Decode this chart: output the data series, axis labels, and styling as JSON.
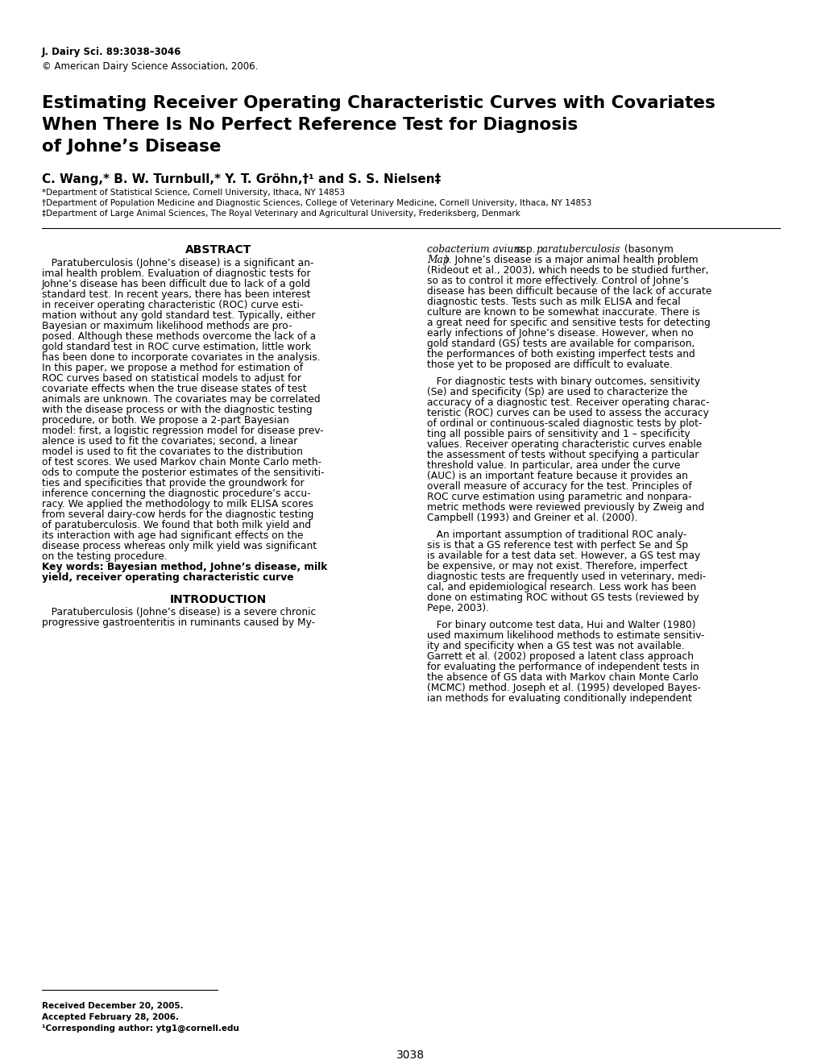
{
  "journal_line1": "J. Dairy Sci. 89:3038–3046",
  "journal_line2": "© American Dairy Science Association, 2006.",
  "title_line1": "Estimating Receiver Operating Characteristic Curves with Covariates",
  "title_line2": "When There Is No Perfect Reference Test for Diagnosis",
  "title_line3": "of Johne’s Disease",
  "authors": "C. Wang,* B. W. Turnbull,* Y. T. Gröhn,†¹ and S. S. Nielsen‡",
  "affil1": "*Department of Statistical Science, Cornell University, Ithaca, NY 14853",
  "affil2": "†Department of Population Medicine and Diagnostic Sciences, College of Veterinary Medicine, Cornell University, Ithaca, NY 14853",
  "affil3": "‡Department of Large Animal Sciences, The Royal Veterinary and Agricultural University, Frederiksberg, Denmark",
  "abstract_heading": "ABSTRACT",
  "intro_heading": "INTRODUCTION",
  "footnote1": "Received December 20, 2005.",
  "footnote2": "Accepted February 28, 2006.",
  "footnote3": "¹Corresponding author: ytg1@cornell.edu",
  "page_number": "3038",
  "bg_color": "#ffffff",
  "text_color": "#000000",
  "left_abstract_lines": [
    "   Paratuberculosis (Johne’s disease) is a significant an-",
    "imal health problem. Evaluation of diagnostic tests for",
    "Johne’s disease has been difficult due to lack of a gold",
    "standard test. In recent years, there has been interest",
    "in receiver operating characteristic (ROC) curve esti-",
    "mation without any gold standard test. Typically, either",
    "Bayesian or maximum likelihood methods are pro-",
    "posed. Although these methods overcome the lack of a",
    "gold standard test in ROC curve estimation, little work",
    "has been done to incorporate covariates in the analysis.",
    "In this paper, we propose a method for estimation of",
    "ROC curves based on statistical models to adjust for",
    "covariate effects when the true disease states of test",
    "animals are unknown. The covariates may be correlated",
    "with the disease process or with the diagnostic testing",
    "procedure, or both. We propose a 2-part Bayesian",
    "model: first, a logistic regression model for disease prev-",
    "alence is used to fit the covariates; second, a linear",
    "model is used to fit the covariates to the distribution",
    "of test scores. We used Markov chain Monte Carlo meth-",
    "ods to compute the posterior estimates of the sensitiviti-",
    "ties and specificities that provide the groundwork for",
    "inference concerning the diagnostic procedure’s accu-",
    "racy. We applied the methodology to milk ELISA scores",
    "from several dairy-cow herds for the diagnostic testing",
    "of paratuberculosis. We found that both milk yield and",
    "its interaction with age had significant effects on the",
    "disease process whereas only milk yield was significant",
    "on the testing procedure."
  ],
  "left_keywords_lines": [
    "Key words: Bayesian method, Johne’s disease, milk",
    "yield, receiver operating characteristic curve"
  ],
  "intro_lines": [
    "   Paratuberculosis (Johne’s disease) is a severe chronic",
    "progressive gastroenteritis in ruminants caused by My-"
  ],
  "right_col_para1": [
    "cobacterium avium ssp. paratuberculosis (basonym",
    "Map). Johne’s disease is a major animal health problem",
    "(Rideout et al., 2003), which needs to be studied further,",
    "so as to control it more effectively. Control of Johne’s",
    "disease has been difficult because of the lack of accurate",
    "diagnostic tests. Tests such as milk ELISA and fecal",
    "culture are known to be somewhat inaccurate. There is",
    "a great need for specific and sensitive tests for detecting",
    "early infections of Johne’s disease. However, when no",
    "gold standard (GS) tests are available for comparison,",
    "the performances of both existing imperfect tests and",
    "those yet to be proposed are difficult to evaluate."
  ],
  "right_col_para2": [
    "   For diagnostic tests with binary outcomes, sensitivity",
    "(Se) and specificity (Sp) are used to characterize the",
    "accuracy of a diagnostic test. Receiver operating charac-",
    "teristic (ROC) curves can be used to assess the accuracy",
    "of ordinal or continuous-scaled diagnostic tests by plot-",
    "ting all possible pairs of sensitivity and 1 – specificity",
    "values. Receiver operating characteristic curves enable",
    "the assessment of tests without specifying a particular",
    "threshold value. In particular, area under the curve",
    "(AUC) is an important feature because it provides an",
    "overall measure of accuracy for the test. Principles of",
    "ROC curve estimation using parametric and nonpara-",
    "metric methods were reviewed previously by Zweig and",
    "Campbell (1993) and Greiner et al. (2000)."
  ],
  "right_col_para3": [
    "   An important assumption of traditional ROC analy-",
    "sis is that a GS reference test with perfect Se and Sp",
    "is available for a test data set. However, a GS test may",
    "be expensive, or may not exist. Therefore, imperfect",
    "diagnostic tests are frequently used in veterinary, medi-",
    "cal, and epidemiological research. Less work has been",
    "done on estimating ROC without GS tests (reviewed by",
    "Pepe, 2003)."
  ],
  "right_col_para4": [
    "   For binary outcome test data, Hui and Walter (1980)",
    "used maximum likelihood methods to estimate sensitiv-",
    "ity and specificity when a GS test was not available.",
    "Garrett et al. (2002) proposed a latent class approach",
    "for evaluating the performance of independent tests in",
    "the absence of GS data with Markov chain Monte Carlo",
    "(MCMC) method. Joseph et al. (1995) developed Bayes-",
    "ian methods for evaluating conditionally independent"
  ]
}
